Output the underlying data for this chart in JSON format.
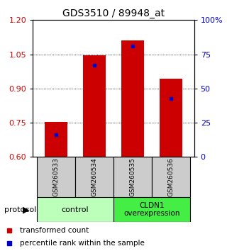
{
  "title": "GDS3510 / 89948_at",
  "categories": [
    "GSM260533",
    "GSM260534",
    "GSM260535",
    "GSM260536"
  ],
  "bar_bottom": 0.6,
  "bar_tops": [
    0.752,
    1.044,
    1.11,
    0.942
  ],
  "percentile_values": [
    0.698,
    1.002,
    1.086,
    0.855
  ],
  "ylim_left": [
    0.6,
    1.2
  ],
  "ylim_right": [
    0,
    100
  ],
  "yticks_left": [
    0.6,
    0.75,
    0.9,
    1.05,
    1.2
  ],
  "yticks_right": [
    0,
    25,
    50,
    75,
    100
  ],
  "bar_color": "#cc0000",
  "percentile_color": "#0000cc",
  "bar_width": 0.6,
  "group_labels": [
    "control",
    "CLDN1\noverexpression"
  ],
  "group_colors_light": "#bbffbb",
  "group_colors_dark": "#44ee44",
  "sample_bg_color": "#cccccc",
  "protocol_label": "protocol",
  "legend_red_label": "transformed count",
  "legend_blue_label": "percentile rank within the sample",
  "title_fontsize": 10,
  "tick_fontsize": 8,
  "legend_fontsize": 7.5
}
